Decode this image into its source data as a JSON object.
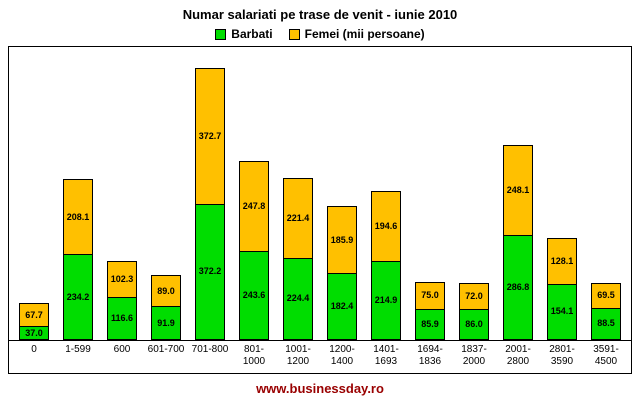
{
  "title": "Numar salariati pe trase de venit - iunie 2010",
  "footer": {
    "text": "www.businessday.ro",
    "color": "#990000"
  },
  "legend": {
    "items": [
      {
        "label": "Barbati",
        "color": "#00DD00"
      },
      {
        "label": "Femei (mii persoane)",
        "color": "#FFC000"
      }
    ]
  },
  "colors": {
    "barbati": "#00DD00",
    "femei": "#FFC000",
    "bar_border": "#000000"
  },
  "chart_data": {
    "type": "bar",
    "stacked": true,
    "title": "Numar salariati pe trase de venit - iunie 2010",
    "xlabel": "",
    "ylabel": "mii persoane",
    "ylim": [
      0,
      800
    ],
    "grid": false,
    "legend_position": "top",
    "categories": [
      "0",
      "1-599",
      "600",
      "601-700",
      "701-800",
      "801-\n1000",
      "1001-\n1200",
      "1200-\n1400",
      "1401-\n1693",
      "1694-\n1836",
      "1837-\n2000",
      "2001-\n2800",
      "2801-\n3590",
      "3591-\n4500"
    ],
    "series": [
      {
        "name": "Barbati",
        "color": "#00DD00",
        "values": [
          37.0,
          234.2,
          116.6,
          91.9,
          372.2,
          243.6,
          224.4,
          182.4,
          214.9,
          85.9,
          86.0,
          286.8,
          154.1,
          88.5
        ]
      },
      {
        "name": "Femei",
        "color": "#FFC000",
        "values": [
          67.7,
          208.1,
          102.3,
          89.0,
          372.7,
          247.8,
          221.4,
          185.9,
          194.6,
          75.0,
          72.0,
          248.1,
          128.1,
          69.5
        ]
      }
    ]
  }
}
